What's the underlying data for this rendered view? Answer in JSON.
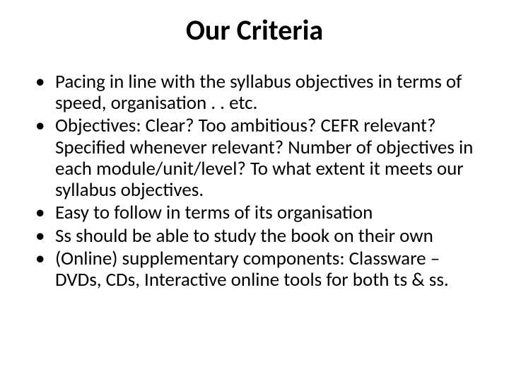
{
  "title": "Our Criteria",
  "bullets": [
    "Pacing in line with the syllabus objectives in terms of speed, organisation . . etc.",
    "Objectives: Clear? Too ambitious? CEFR relevant? Specified whenever relevant? Number of objectives in each module/unit/level? To what extent it meets our syllabus objectives.",
    "Easy to follow in terms of its organisation",
    "Ss should be able to study the book on their own",
    "(Online) supplementary components: Classware – DVDs, CDs, Interactive online tools for both ts & ss."
  ],
  "style": {
    "background_color": "#ffffff",
    "text_color": "#000000",
    "title_fontsize": 40,
    "title_fontweight": 700,
    "body_fontsize": 27,
    "body_line_height": 1.12,
    "font_family": "Calibri"
  }
}
